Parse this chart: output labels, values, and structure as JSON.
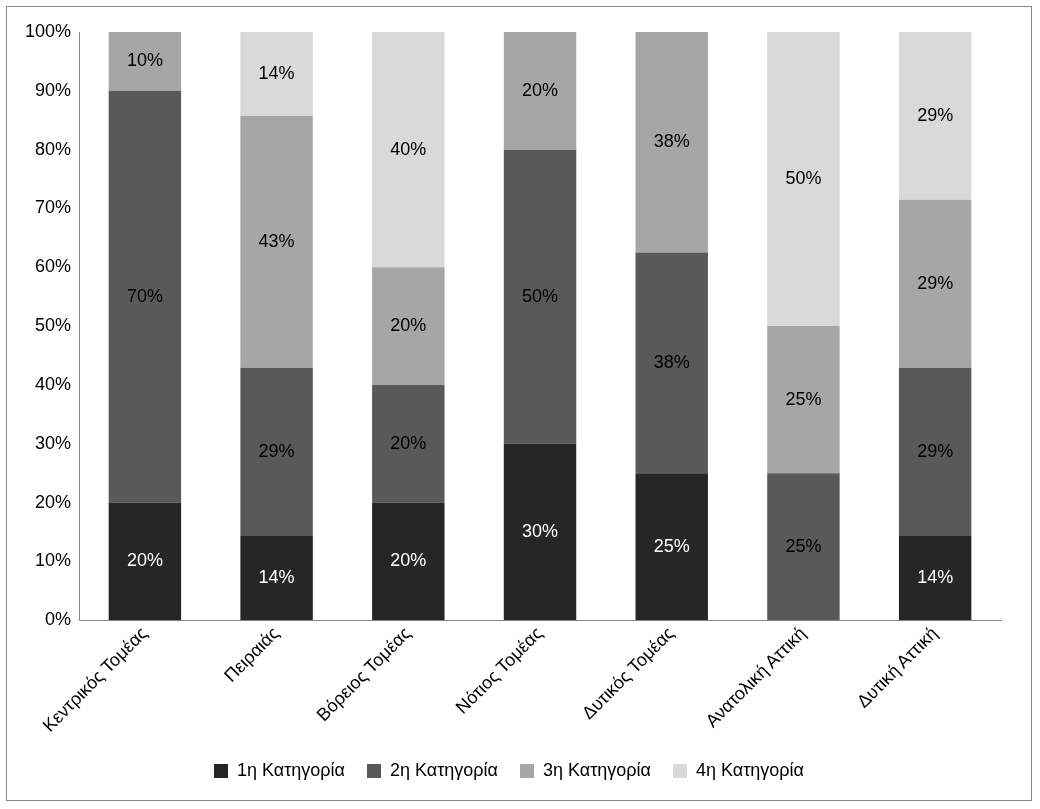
{
  "chart_data": {
    "type": "bar",
    "stacked": true,
    "categories": [
      "Κεντρικός Τομέας",
      "Πειραιάς",
      "Βόρειος Τομέας",
      "Νότιος Τομέας",
      "Δυτικός Τομέας",
      "Ανατολική Αττική",
      "Δυτική Αττική"
    ],
    "series": [
      {
        "name": "1η Κατηγορία",
        "color": "#262626",
        "values": [
          20,
          14.3,
          20,
          30,
          25,
          0,
          14.3
        ],
        "value_labels": [
          "20%",
          "14%",
          "20%",
          "30%",
          "25%",
          null,
          "14%"
        ]
      },
      {
        "name": "2η Κατηγορία",
        "color": "#595959",
        "values": [
          70,
          28.6,
          20,
          50,
          37.5,
          25,
          28.6
        ],
        "value_labels": [
          "70%",
          "29%",
          "20%",
          "50%",
          "38%",
          "25%",
          "29%"
        ]
      },
      {
        "name": "3η Κατηγορία",
        "color": "#a6a6a6",
        "values": [
          10,
          42.8,
          20,
          20,
          37.5,
          25,
          28.6
        ],
        "value_labels": [
          "10%",
          "43%",
          "20%",
          "20%",
          "38%",
          "25%",
          "29%"
        ]
      },
      {
        "name": "4η Κατηγορία",
        "color": "#d9d9d9",
        "values": [
          0,
          14.3,
          40,
          0,
          0,
          50,
          28.5
        ],
        "value_labels": [
          null,
          "14%",
          "40%",
          null,
          null,
          "50%",
          "29%"
        ]
      }
    ],
    "ylim": [
      0,
      100
    ],
    "yticks": [
      {
        "value": 0,
        "label": "0%"
      },
      {
        "value": 10,
        "label": "10%"
      },
      {
        "value": 20,
        "label": "20%"
      },
      {
        "value": 30,
        "label": "30%"
      },
      {
        "value": 40,
        "label": "40%"
      },
      {
        "value": 50,
        "label": "50%"
      },
      {
        "value": 60,
        "label": "60%"
      },
      {
        "value": 70,
        "label": "70%"
      },
      {
        "value": 80,
        "label": "80%"
      },
      {
        "value": 90,
        "label": "90%"
      },
      {
        "value": 100,
        "label": "100%"
      }
    ],
    "grid": false,
    "legend": "bottom"
  }
}
